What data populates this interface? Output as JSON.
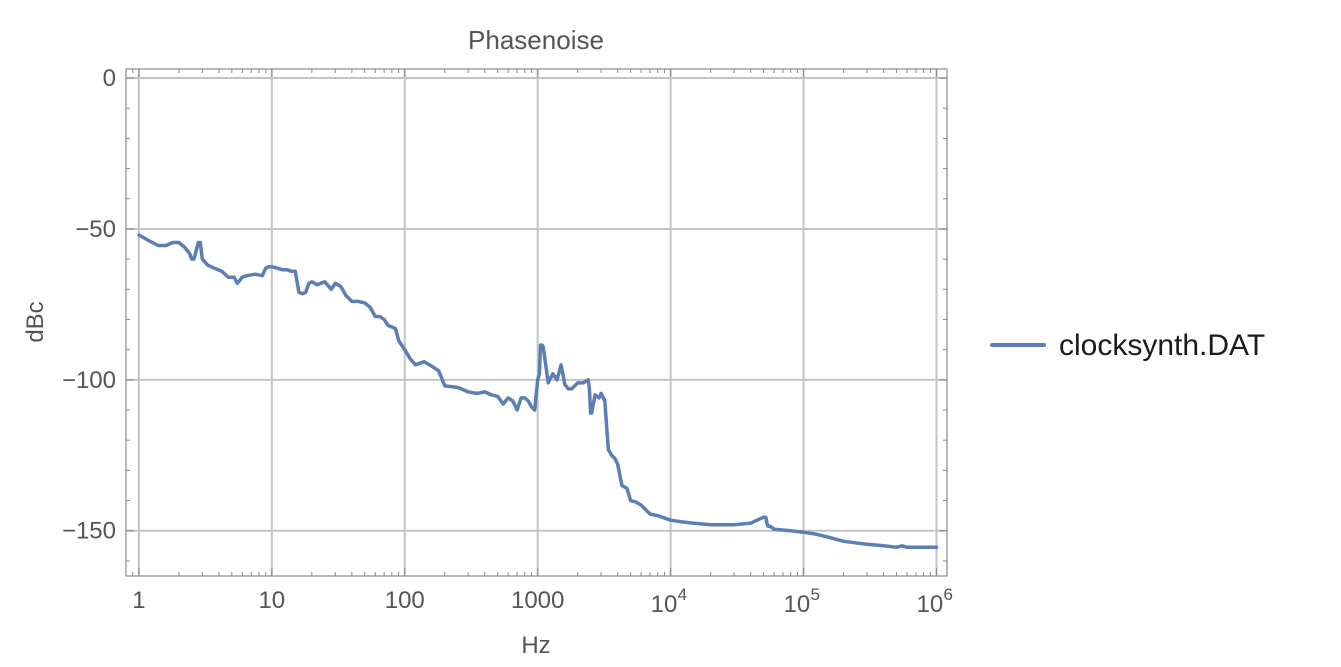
{
  "chart_data": {
    "type": "line",
    "title": "Phasenoise",
    "xlabel": "Hz",
    "ylabel": "dBc",
    "xscale": "log",
    "xlim": [
      0.8,
      1200000
    ],
    "ylim": [
      -165,
      3
    ],
    "grid": true,
    "legend_position": "right",
    "x_ticks": [
      {
        "value": 1,
        "label": "1"
      },
      {
        "value": 10,
        "label": "10"
      },
      {
        "value": 100,
        "label": "100"
      },
      {
        "value": 1000,
        "label": "1000"
      },
      {
        "value": 10000,
        "base": "10",
        "exp": "4"
      },
      {
        "value": 100000,
        "base": "10",
        "exp": "5"
      },
      {
        "value": 1000000,
        "base": "10",
        "exp": "6"
      }
    ],
    "y_ticks": [
      {
        "value": 0,
        "label": "0"
      },
      {
        "value": -50,
        "label": "−50"
      },
      {
        "value": -100,
        "label": "−100"
      },
      {
        "value": -150,
        "label": "−150"
      }
    ],
    "colors": {
      "series": "#5b7fb5",
      "grid": "#c4c4c4",
      "frame": "#8a8a8a",
      "text": "#555555"
    },
    "series": [
      {
        "name": "clocksynth.DAT",
        "x": [
          1,
          1.2,
          1.4,
          1.6,
          1.8,
          2.0,
          2.2,
          2.4,
          2.5,
          2.6,
          2.8,
          2.9,
          3.0,
          3.3,
          3.7,
          4.2,
          4.7,
          5.2,
          5.5,
          6.0,
          6.5,
          7.5,
          8.5,
          9.0,
          9.5,
          10,
          11,
          12,
          13,
          14,
          15,
          16,
          17,
          18,
          19,
          20,
          22,
          25,
          28,
          30,
          33,
          36,
          40,
          45,
          50,
          55,
          60,
          65,
          70,
          75,
          80,
          85,
          90,
          100,
          110,
          120,
          140,
          160,
          180,
          200,
          250,
          300,
          350,
          400,
          450,
          500,
          550,
          600,
          650,
          700,
          750,
          800,
          850,
          900,
          950,
          1000,
          1030,
          1050,
          1080,
          1100,
          1200,
          1300,
          1400,
          1500,
          1600,
          1700,
          1800,
          2000,
          2200,
          2400,
          2450,
          2500,
          2550,
          2700,
          2900,
          3000,
          3200,
          3400,
          3600,
          3800,
          4000,
          4300,
          4700,
          5000,
          5500,
          6000,
          6500,
          7000,
          8000,
          10000,
          12000,
          15000,
          20000,
          30000,
          40000,
          50000,
          52000,
          53000,
          54000,
          56000,
          60000,
          80000,
          100000,
          120000,
          150000,
          200000,
          300000,
          400000,
          500000,
          550000,
          600000,
          700000,
          1000000
        ],
        "y": [
          -52,
          -54,
          -55.5,
          -55.5,
          -54.5,
          -54.5,
          -56,
          -58,
          -60,
          -60,
          -54.5,
          -54.5,
          -60,
          -62,
          -63,
          -64,
          -66,
          -66,
          -68,
          -66,
          -65.5,
          -65,
          -65.5,
          -63,
          -62.5,
          -62.5,
          -63,
          -63.5,
          -63.5,
          -64,
          -64,
          -71,
          -71.5,
          -71,
          -68,
          -67.5,
          -68.5,
          -67.5,
          -70,
          -68,
          -69,
          -72,
          -74,
          -74,
          -74.5,
          -76,
          -79,
          -79,
          -80,
          -82,
          -82.5,
          -83,
          -87,
          -90,
          -93,
          -95,
          -94,
          -95.5,
          -97,
          -102,
          -102.5,
          -104,
          -104.5,
          -104,
          -105,
          -105.5,
          -108,
          -106,
          -107,
          -110,
          -106,
          -106,
          -107,
          -109,
          -110,
          -100,
          -98,
          -88.5,
          -88.5,
          -89,
          -101,
          -98,
          -100,
          -95,
          -101.5,
          -103,
          -103,
          -101,
          -101,
          -100,
          -103,
          -111,
          -111,
          -105,
          -106,
          -104.5,
          -107,
          -123,
          -125,
          -126,
          -128,
          -135,
          -136,
          -140,
          -140.5,
          -141.5,
          -143,
          -144.5,
          -145,
          -146.5,
          -147,
          -147.5,
          -148,
          -148,
          -147.5,
          -145.5,
          -145.5,
          -147.5,
          -148.5,
          -148.5,
          -149.5,
          -150,
          -150.5,
          -151,
          -152,
          -153.5,
          -154.5,
          -155,
          -155.5,
          -155,
          -155.5,
          -155.5,
          -155.5
        ]
      }
    ]
  }
}
